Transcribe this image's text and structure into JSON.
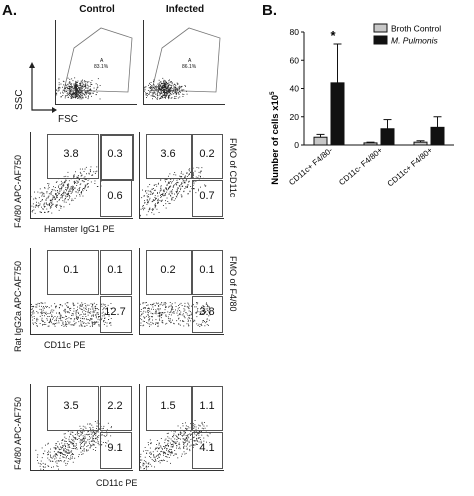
{
  "panel_a_label": "A.",
  "panel_b_label": "B.",
  "columns": {
    "control": "Control",
    "infected": "Infected"
  },
  "row1": {
    "ylabel": "SSC",
    "xlabel": "FSC",
    "gate_labels": [
      "A",
      "A"
    ],
    "gate_pcts": [
      "83.1%",
      "86.1%"
    ]
  },
  "row2": {
    "ylabel": "F4/80 APC-AF750",
    "xlabel": "Hamster IgG1 PE",
    "side_label": "FMO of CD11c",
    "left": [
      "3.8",
      "0.3",
      "0.6"
    ],
    "right": [
      "3.6",
      "0.2",
      "0.7"
    ]
  },
  "row3": {
    "ylabel": "Rat IgG2a APC-AF750",
    "xlabel": "CD11c PE",
    "side_label": "FMO of F4/80",
    "left": [
      "0.1",
      "0.1",
      "12.7"
    ],
    "right": [
      "0.2",
      "0.1",
      "3.8"
    ]
  },
  "row4": {
    "ylabel": "F4/80 APC-AF750",
    "xlabel": "CD11c PE",
    "left": [
      "3.5",
      "2.2",
      "9.1"
    ],
    "right": [
      "1.5",
      "1.1",
      "4.1"
    ]
  },
  "chart_data": {
    "type": "bar",
    "ylabel": "Number of cells x10",
    "ylabel_exp": "5",
    "ylim": [
      0,
      80
    ],
    "yticks": [
      "0",
      "20",
      "40",
      "60",
      "80"
    ],
    "categories": [
      "CD11c+ F4/80-",
      "CD11c- F4/80+",
      "CD11c+ F4/80+"
    ],
    "series": [
      {
        "name": "Broth Control",
        "color": "#c8c8c8",
        "values": [
          5.5,
          1.5,
          2
        ],
        "errors": [
          2,
          0.5,
          1
        ]
      },
      {
        "name": "M. Pulmonis",
        "color": "#111111",
        "values": [
          44,
          11.5,
          12.5
        ],
        "errors": [
          27.5,
          6.5,
          7.5
        ]
      }
    ],
    "annotations": [
      {
        "category": "CD11c+ F4/80-",
        "text": "*"
      }
    ]
  }
}
